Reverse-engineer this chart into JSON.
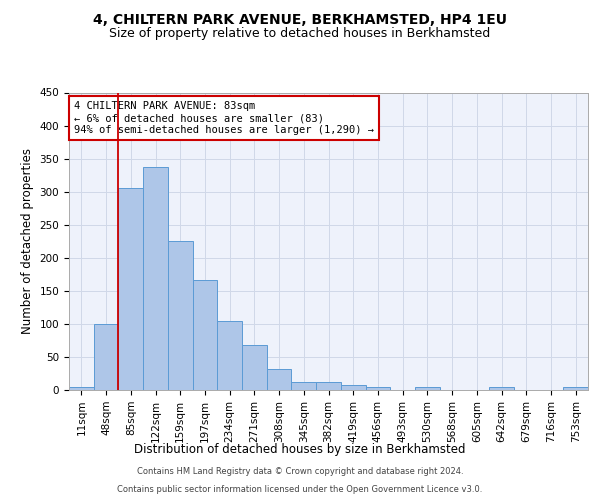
{
  "title": "4, CHILTERN PARK AVENUE, BERKHAMSTED, HP4 1EU",
  "subtitle": "Size of property relative to detached houses in Berkhamsted",
  "xlabel": "Distribution of detached houses by size in Berkhamsted",
  "ylabel": "Number of detached properties",
  "footer_line1": "Contains HM Land Registry data © Crown copyright and database right 2024.",
  "footer_line2": "Contains public sector information licensed under the Open Government Licence v3.0.",
  "bar_labels": [
    "11sqm",
    "48sqm",
    "85sqm",
    "122sqm",
    "159sqm",
    "197sqm",
    "234sqm",
    "271sqm",
    "308sqm",
    "345sqm",
    "382sqm",
    "419sqm",
    "456sqm",
    "493sqm",
    "530sqm",
    "568sqm",
    "605sqm",
    "642sqm",
    "679sqm",
    "716sqm",
    "753sqm"
  ],
  "bar_values": [
    5,
    100,
    305,
    338,
    226,
    167,
    105,
    68,
    32,
    12,
    12,
    7,
    5,
    0,
    4,
    0,
    0,
    4,
    0,
    0,
    4
  ],
  "bar_color": "#aec6e8",
  "bar_edge_color": "#5b9bd5",
  "red_line_index": 2,
  "annotation_line1": "4 CHILTERN PARK AVENUE: 83sqm",
  "annotation_line2": "← 6% of detached houses are smaller (83)",
  "annotation_line3": "94% of semi-detached houses are larger (1,290) →",
  "annotation_box_color": "#ffffff",
  "annotation_border_color": "#cc0000",
  "ylim": [
    0,
    450
  ],
  "yticks": [
    0,
    50,
    100,
    150,
    200,
    250,
    300,
    350,
    400,
    450
  ],
  "grid_color": "#d0d8e8",
  "background_color": "#eef2fb",
  "fig_bg_color": "#ffffff",
  "title_fontsize": 10,
  "subtitle_fontsize": 9,
  "xlabel_fontsize": 8.5,
  "ylabel_fontsize": 8.5,
  "tick_fontsize": 7.5,
  "annotation_fontsize": 7.5,
  "footer_fontsize": 6
}
